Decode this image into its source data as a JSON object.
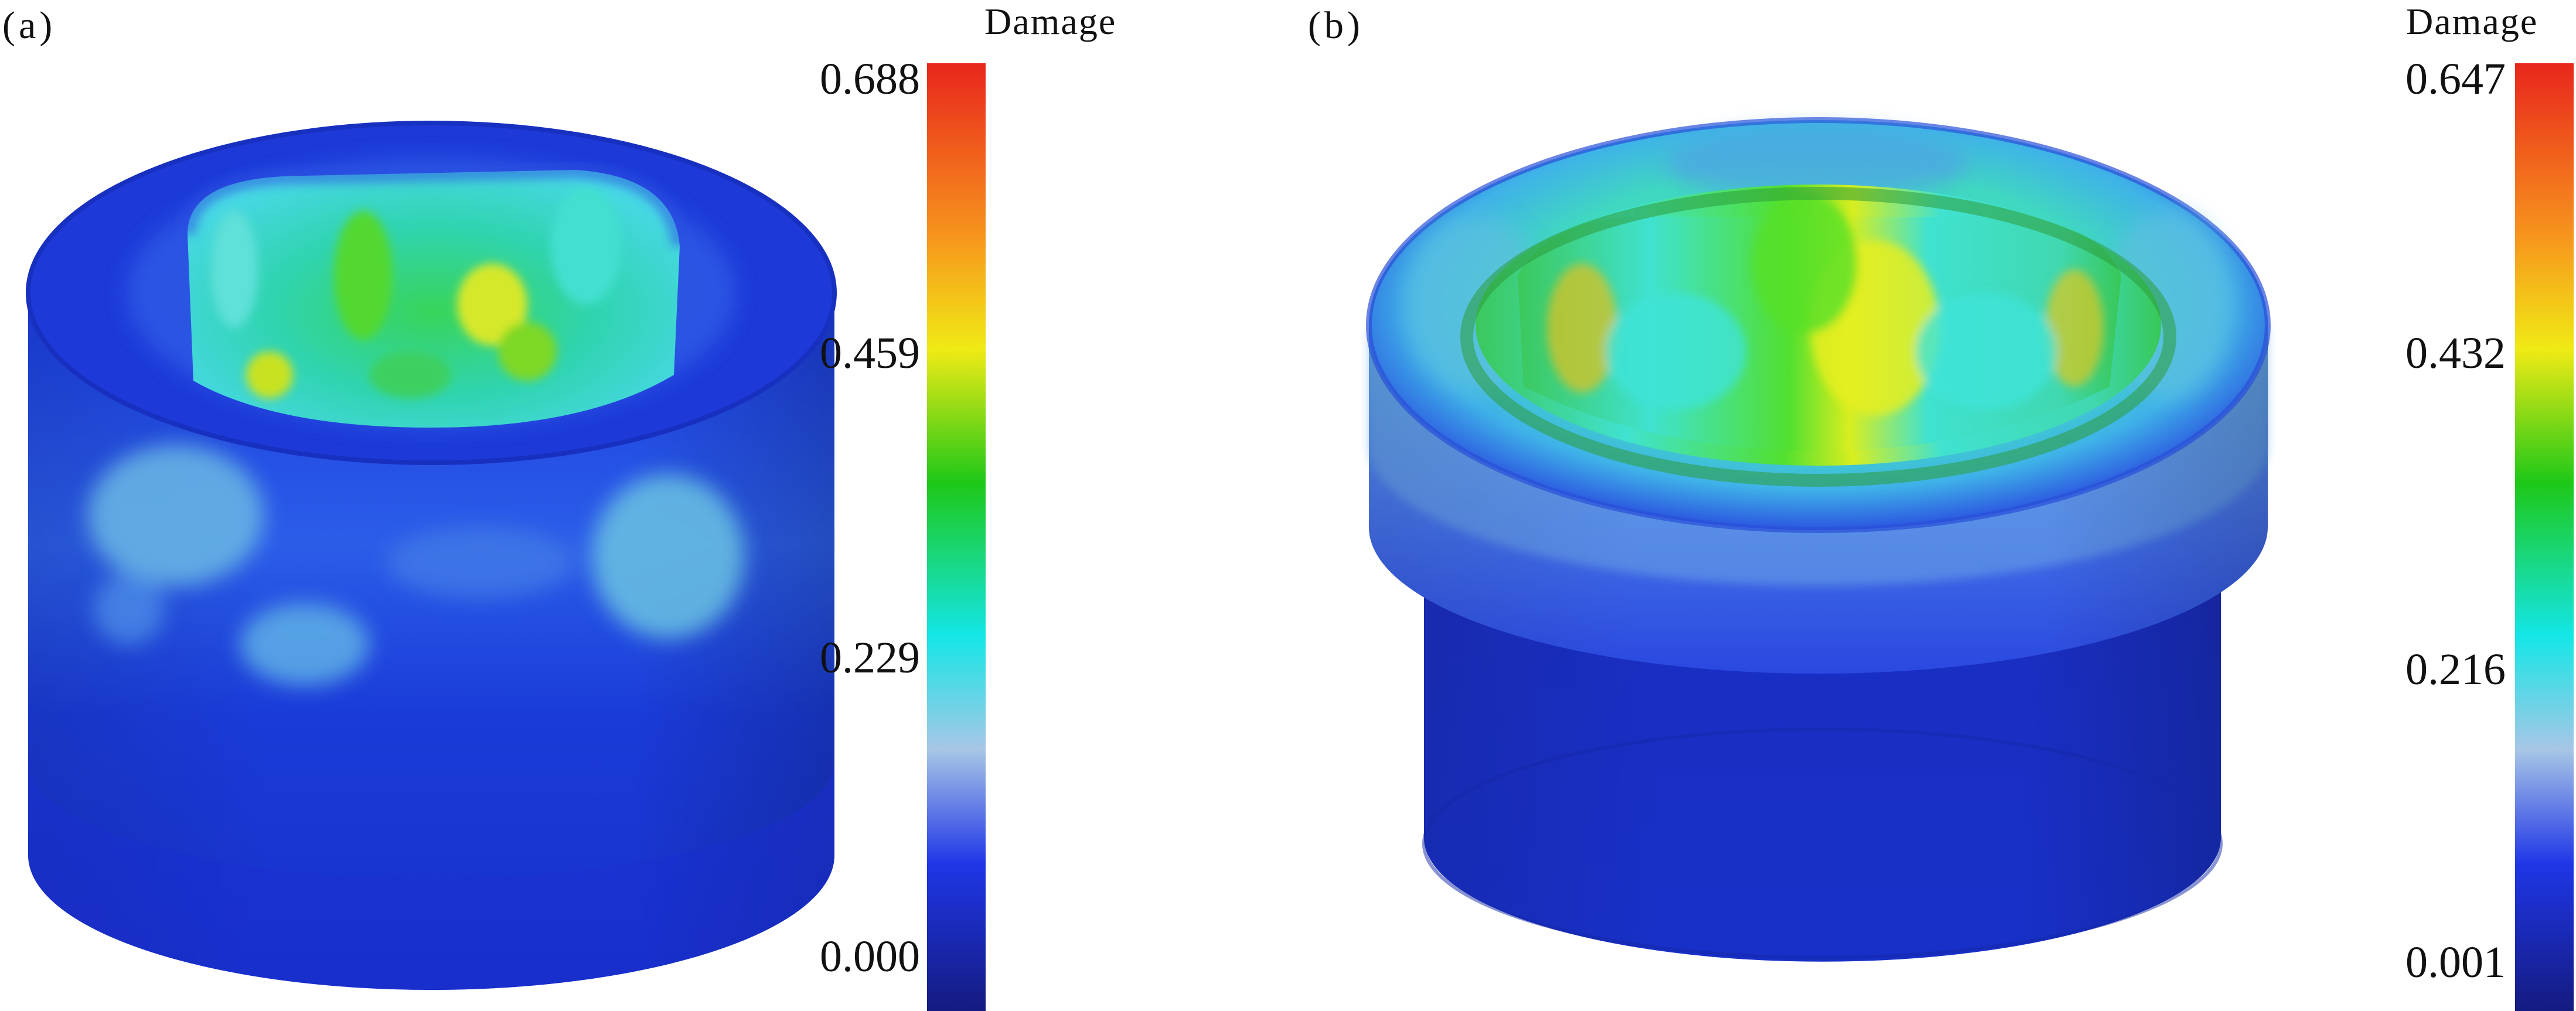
{
  "panels": [
    {
      "label": "(a)",
      "legend_title": "Damage",
      "scale_ticks": [
        "0.688",
        "0.459",
        "0.229",
        "0.000"
      ]
    },
    {
      "label": "(b)",
      "legend_title": "Damage",
      "scale_ticks": [
        "0.647",
        "0.432",
        "0.216",
        "0.001"
      ]
    }
  ],
  "colors": {
    "scale_top": "#e8261c",
    "scale_orange": "#f7941d",
    "scale_yellow": "#f0ea15",
    "scale_green": "#1ec818",
    "scale_cyan": "#14e6e6",
    "scale_light": "#a8c6e6",
    "scale_blue": "#1f36e6",
    "scale_bottom": "#141a7c"
  }
}
